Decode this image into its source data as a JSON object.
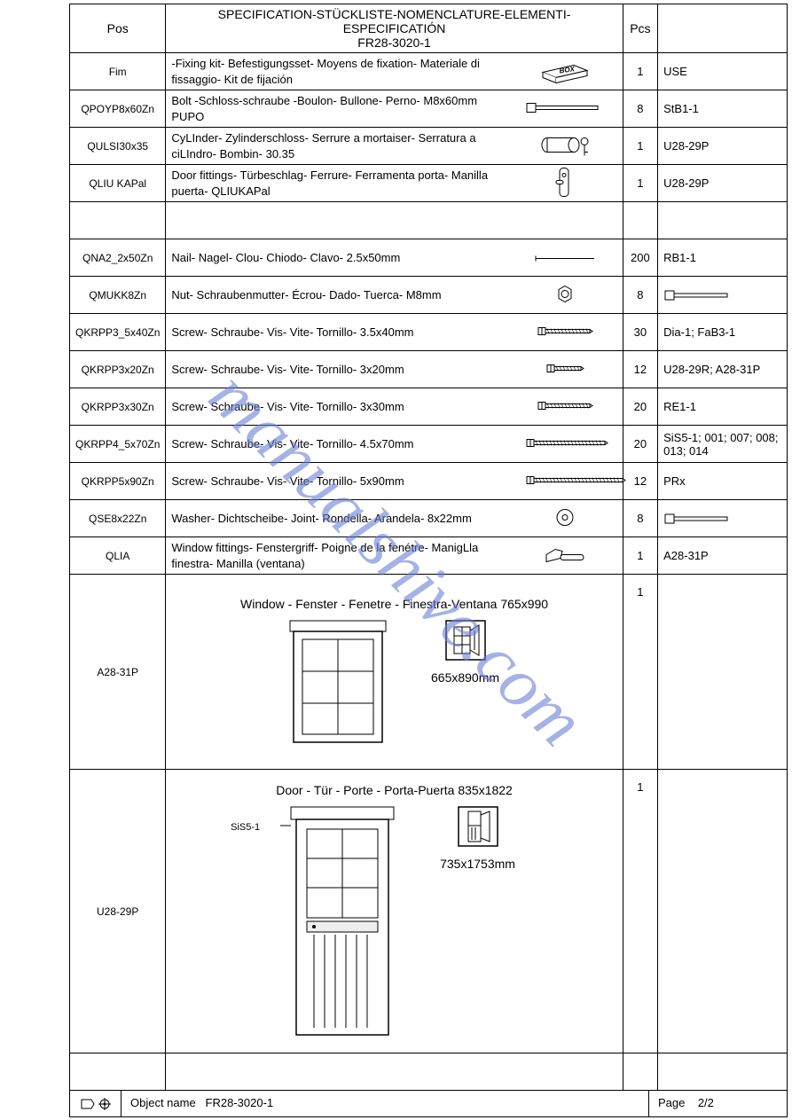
{
  "watermark": "manualshive.com",
  "header": {
    "col_pos": "Pos",
    "title_line1": "SPECIFICATION-STÜCKLISTE-NOMENCLATURE-ELEMENTI-ESPECIFICATIÓN",
    "title_line2": "FR28-3020-1",
    "col_pcs": "Pcs",
    "col_ref": ""
  },
  "rows": [
    {
      "pos": "Fim",
      "desc": "-Fixing kit- Befestigungsset- Moyens de fixation- Materiale di fissaggio- Kit de fijación",
      "icon": "box",
      "pcs": "1",
      "ref": "USE"
    },
    {
      "pos": "QPOYP8x60Zn",
      "desc": "Bolt -Schloss-schraube -Boulon- Bullone- Perno- M8x60mm PUPO",
      "icon": "bolt",
      "pcs": "8",
      "ref": "StB1-1"
    },
    {
      "pos": "QULSI30x35",
      "desc": "CyLInder- Zylinderschloss- Serrure a mortaiser- Serratura a ciLIndro- Bombin- 30.35",
      "icon": "cylinder",
      "pcs": "1",
      "ref": "U28-29P"
    },
    {
      "pos": "QLIU KAPal",
      "desc": "Door fittings- Türbeschlag- Ferrure- Ferramenta porta- Manilla puerta- QLIUKAPal",
      "icon": "doorfit",
      "pcs": "1",
      "ref": "U28-29P"
    },
    {
      "blank": true
    },
    {
      "pos": "QNA2_2x50Zn",
      "desc": "Nail- Nagel- Clou- Chiodo- Clavo- 2.5x50mm",
      "icon": "nail",
      "pcs": "200",
      "ref": "RB1-1"
    },
    {
      "pos": "QMUKK8Zn",
      "desc": "Nut- Schraubenmutter- Écrou- Dado- Tuerca- M8mm",
      "icon": "nut",
      "pcs": "8",
      "ref": "bolt-icon"
    },
    {
      "pos": "QKRPP3_5x40Zn",
      "desc": "Screw- Schraube- Vis- Vite- Tornillo- 3.5x40mm",
      "icon": "screw-m",
      "pcs": "30",
      "ref": "Dia-1; FaB3-1"
    },
    {
      "pos": "QKRPP3x20Zn",
      "desc": "Screw- Schraube- Vis- Vite- Tornillo- 3x20mm",
      "icon": "screw-s",
      "pcs": "12",
      "ref": "U28-29R; A28-31P"
    },
    {
      "pos": "QKRPP3x30Zn",
      "desc": "Screw- Schraube- Vis- Vite- Tornillo- 3x30mm",
      "icon": "screw-m",
      "pcs": "20",
      "ref": "RE1-1"
    },
    {
      "pos": "QKRPP4_5x70Zn",
      "desc": "Screw- Schraube- Vis- Vite- Tornillo- 4.5x70mm",
      "icon": "screw-l",
      "pcs": "20",
      "ref": "SiS5-1; 001; 007; 008; 013; 014"
    },
    {
      "pos": "QKRPP5x90Zn",
      "desc": "Screw- Schraube- Vis- Vite- Tornillo- 5x90mm",
      "icon": "screw-xl",
      "pcs": "12",
      "ref": "PRx"
    },
    {
      "pos": "QSE8x22Zn",
      "desc": "Washer- Dichtscheibe- Joint- Rondella- Arandela- 8x22mm",
      "icon": "washer",
      "pcs": "8",
      "ref": "bolt-icon"
    },
    {
      "pos": "QLIA",
      "desc": "Window fittings- Fenstergriff- Poigne de la fenétre- ManigLla finestra- Manilla (ventana)",
      "icon": "handle",
      "pcs": "1",
      "ref": "A28-31P"
    }
  ],
  "window_row": {
    "pos": "A28-31P",
    "title": "Window - Fenster - Fenetre - Finestra-Ventana 765x990",
    "dim": "665x890mm",
    "pcs": "1"
  },
  "door_row": {
    "pos": "U28-29P",
    "title": "Door - Tür - Porte - Porta-Puerta 835x1822",
    "dim": "735x1753mm",
    "side_label": "SiS5-1",
    "pcs": "1"
  },
  "footer": {
    "object_label": "Object name",
    "object_value": "FR28-3020-1",
    "page_label": "Page",
    "page_value": "2/2"
  },
  "colors": {
    "border": "#000000",
    "text": "#000000",
    "watermark": "#6b7fd7",
    "background": "#ffffff"
  }
}
